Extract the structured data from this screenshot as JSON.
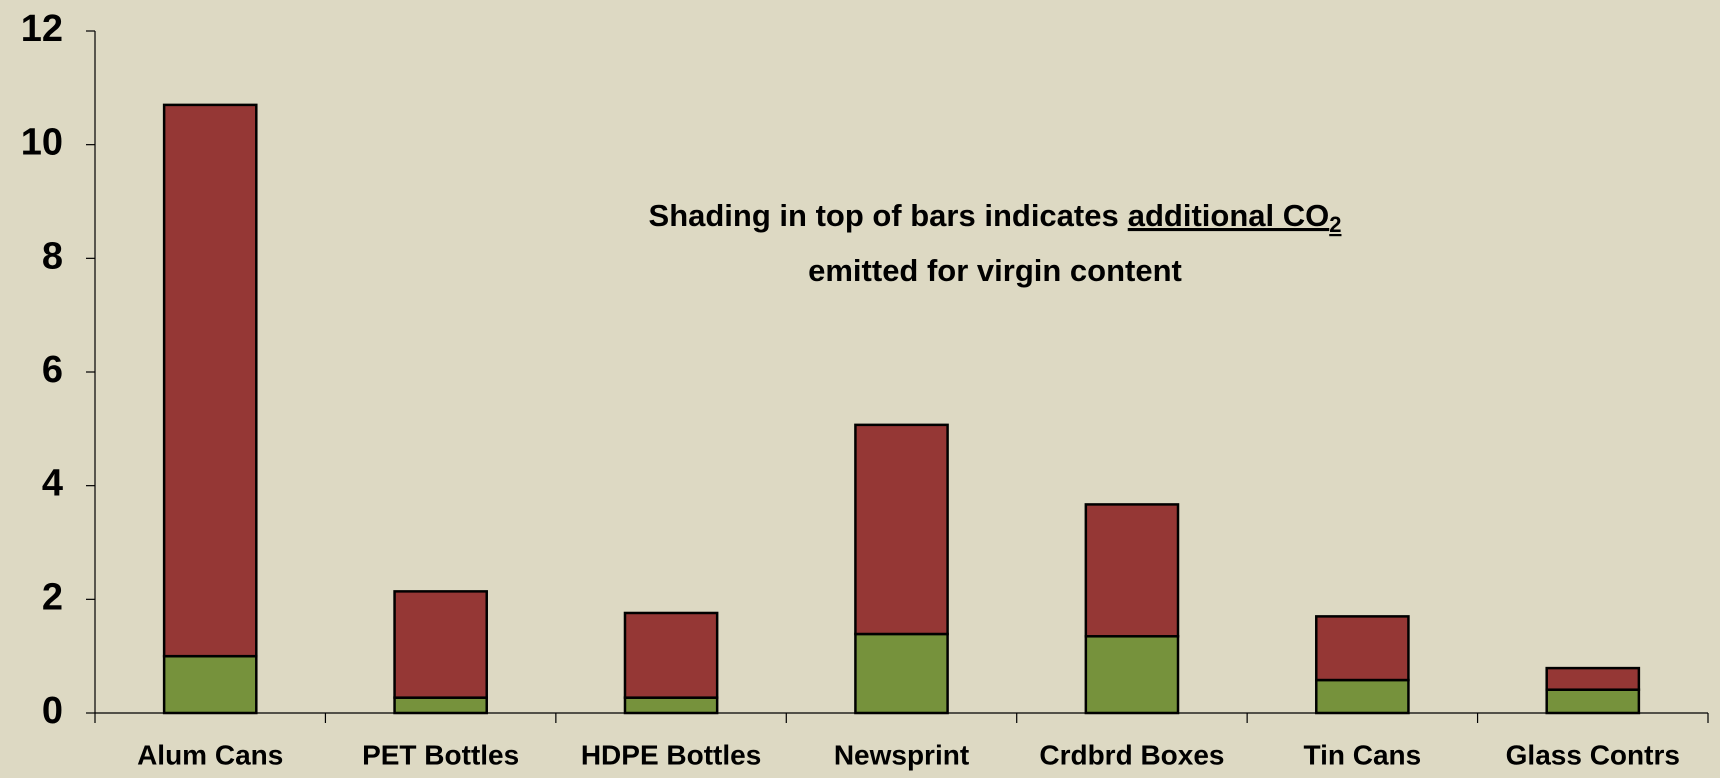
{
  "chart_data": {
    "type": "stacked_bar",
    "annotation": {
      "line1": "Shading in top of bars indicates",
      "underlined": "additional CO",
      "subscript": "2",
      "line2": "emitted for virgin content"
    },
    "categories": [
      "Alum Cans",
      "PET Bottles",
      "HDPE Bottles",
      "Newsprint",
      "Crdbrd Boxes",
      "Tin Cans",
      "Glass Contrs"
    ],
    "series": [
      {
        "color": "#76923c",
        "values": [
          1.0,
          0.27,
          0.27,
          1.39,
          1.35,
          0.58,
          0.41
        ]
      },
      {
        "color": "#953735",
        "values": [
          9.7,
          1.87,
          1.49,
          3.68,
          2.32,
          1.12,
          0.38
        ]
      }
    ],
    "ylim": [
      0,
      12
    ],
    "yticks": [
      0,
      2,
      4,
      6,
      8,
      10,
      12
    ]
  }
}
